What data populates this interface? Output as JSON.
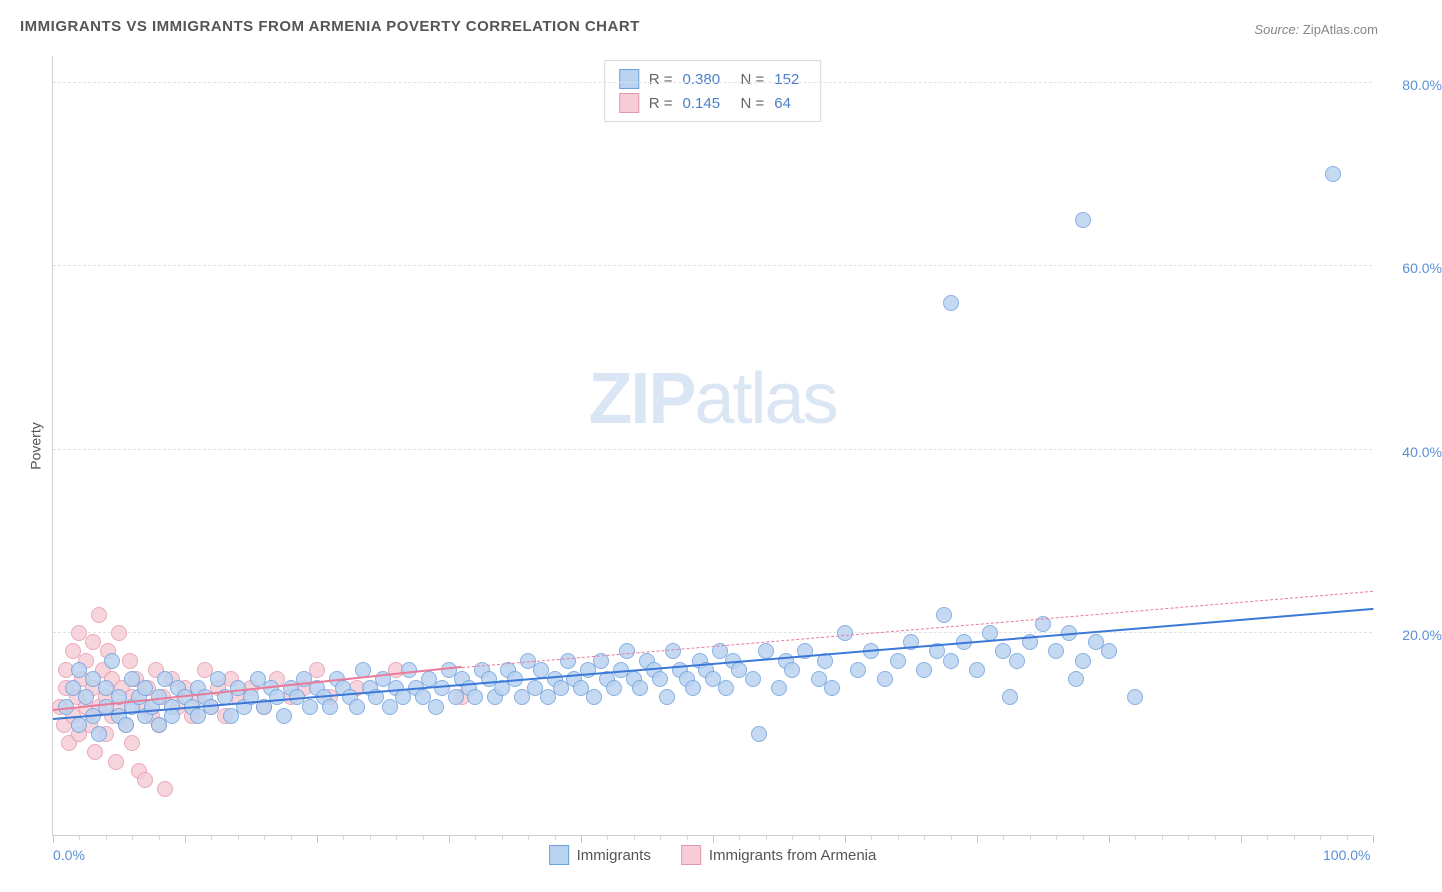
{
  "title": "IMMIGRANTS VS IMMIGRANTS FROM ARMENIA POVERTY CORRELATION CHART",
  "source_label": "Source:",
  "source_value": "ZipAtlas.com",
  "ylabel": "Poverty",
  "watermark_bold": "ZIP",
  "watermark_rest": "atlas",
  "chart": {
    "type": "scatter",
    "xlim": [
      0,
      100
    ],
    "ylim": [
      0,
      85
    ],
    "x_axis_labels": [
      {
        "v": 0,
        "t": "0.0%"
      },
      {
        "v": 100,
        "t": "100.0%"
      }
    ],
    "y_axis_labels": [
      {
        "v": 20,
        "t": "20.0%"
      },
      {
        "v": 40,
        "t": "40.0%"
      },
      {
        "v": 60,
        "t": "60.0%"
      },
      {
        "v": 80,
        "t": "80.0%"
      }
    ],
    "y_gridlines": [
      22,
      42,
      62,
      82
    ],
    "x_major_ticks": [
      0,
      10,
      20,
      30,
      40,
      50,
      60,
      70,
      80,
      90,
      100
    ],
    "x_minor_step": 2,
    "background_color": "#ffffff",
    "grid_color": "#e2e2e2",
    "axis_label_color": "#5b8fd6",
    "marker_radius": 8,
    "marker_stroke_width": 1.2,
    "series": [
      {
        "name": "Immigrants",
        "fill": "#b9d3f0",
        "stroke": "#6ea0dd",
        "R": "0.380",
        "N": "152",
        "trend": {
          "x1": 0,
          "y1": 12.5,
          "x2": 100,
          "y2": 24.5,
          "color": "#3b78d8",
          "style": "solid",
          "extend_x2": 100,
          "extend_y2": 24.5,
          "extend_style": "solid"
        },
        "points": [
          [
            1,
            14
          ],
          [
            1.5,
            16
          ],
          [
            2,
            12
          ],
          [
            2,
            18
          ],
          [
            2.5,
            15
          ],
          [
            3,
            13
          ],
          [
            3,
            17
          ],
          [
            3.5,
            11
          ],
          [
            4,
            14
          ],
          [
            4,
            16
          ],
          [
            4.5,
            19
          ],
          [
            5,
            13
          ],
          [
            5,
            15
          ],
          [
            5.5,
            12
          ],
          [
            6,
            14
          ],
          [
            6,
            17
          ],
          [
            6.5,
            15
          ],
          [
            7,
            13
          ],
          [
            7,
            16
          ],
          [
            7.5,
            14
          ],
          [
            8,
            12
          ],
          [
            8,
            15
          ],
          [
            8.5,
            17
          ],
          [
            9,
            14
          ],
          [
            9,
            13
          ],
          [
            9.5,
            16
          ],
          [
            10,
            15
          ],
          [
            10.5,
            14
          ],
          [
            11,
            13
          ],
          [
            11,
            16
          ],
          [
            11.5,
            15
          ],
          [
            12,
            14
          ],
          [
            12.5,
            17
          ],
          [
            13,
            15
          ],
          [
            13.5,
            13
          ],
          [
            14,
            16
          ],
          [
            14.5,
            14
          ],
          [
            15,
            15
          ],
          [
            15.5,
            17
          ],
          [
            16,
            14
          ],
          [
            16.5,
            16
          ],
          [
            17,
            15
          ],
          [
            17.5,
            13
          ],
          [
            18,
            16
          ],
          [
            18.5,
            15
          ],
          [
            19,
            17
          ],
          [
            19.5,
            14
          ],
          [
            20,
            16
          ],
          [
            20.5,
            15
          ],
          [
            21,
            14
          ],
          [
            21.5,
            17
          ],
          [
            22,
            16
          ],
          [
            22.5,
            15
          ],
          [
            23,
            14
          ],
          [
            23.5,
            18
          ],
          [
            24,
            16
          ],
          [
            24.5,
            15
          ],
          [
            25,
            17
          ],
          [
            25.5,
            14
          ],
          [
            26,
            16
          ],
          [
            26.5,
            15
          ],
          [
            27,
            18
          ],
          [
            27.5,
            16
          ],
          [
            28,
            15
          ],
          [
            28.5,
            17
          ],
          [
            29,
            14
          ],
          [
            29.5,
            16
          ],
          [
            30,
            18
          ],
          [
            30.5,
            15
          ],
          [
            31,
            17
          ],
          [
            31.5,
            16
          ],
          [
            32,
            15
          ],
          [
            32.5,
            18
          ],
          [
            33,
            17
          ],
          [
            33.5,
            15
          ],
          [
            34,
            16
          ],
          [
            34.5,
            18
          ],
          [
            35,
            17
          ],
          [
            35.5,
            15
          ],
          [
            36,
            19
          ],
          [
            36.5,
            16
          ],
          [
            37,
            18
          ],
          [
            37.5,
            15
          ],
          [
            38,
            17
          ],
          [
            38.5,
            16
          ],
          [
            39,
            19
          ],
          [
            39.5,
            17
          ],
          [
            40,
            16
          ],
          [
            40.5,
            18
          ],
          [
            41,
            15
          ],
          [
            41.5,
            19
          ],
          [
            42,
            17
          ],
          [
            42.5,
            16
          ],
          [
            43,
            18
          ],
          [
            43.5,
            20
          ],
          [
            44,
            17
          ],
          [
            44.5,
            16
          ],
          [
            45,
            19
          ],
          [
            45.5,
            18
          ],
          [
            46,
            17
          ],
          [
            46.5,
            15
          ],
          [
            47,
            20
          ],
          [
            47.5,
            18
          ],
          [
            48,
            17
          ],
          [
            48.5,
            16
          ],
          [
            49,
            19
          ],
          [
            49.5,
            18
          ],
          [
            50,
            17
          ],
          [
            50.5,
            20
          ],
          [
            51,
            16
          ],
          [
            51.5,
            19
          ],
          [
            52,
            18
          ],
          [
            53,
            17
          ],
          [
            53.5,
            11
          ],
          [
            54,
            20
          ],
          [
            55,
            16
          ],
          [
            55.5,
            19
          ],
          [
            56,
            18
          ],
          [
            57,
            20
          ],
          [
            58,
            17
          ],
          [
            58.5,
            19
          ],
          [
            59,
            16
          ],
          [
            60,
            22
          ],
          [
            61,
            18
          ],
          [
            62,
            20
          ],
          [
            63,
            17
          ],
          [
            64,
            19
          ],
          [
            65,
            21
          ],
          [
            66,
            18
          ],
          [
            67,
            20
          ],
          [
            67.5,
            24
          ],
          [
            68,
            19
          ],
          [
            69,
            21
          ],
          [
            70,
            18
          ],
          [
            71,
            22
          ],
          [
            72,
            20
          ],
          [
            72.5,
            15
          ],
          [
            73,
            19
          ],
          [
            74,
            21
          ],
          [
            75,
            23
          ],
          [
            76,
            20
          ],
          [
            77,
            22
          ],
          [
            77.5,
            17
          ],
          [
            78,
            19
          ],
          [
            79,
            21
          ],
          [
            80,
            20
          ],
          [
            82,
            15
          ],
          [
            68,
            58
          ],
          [
            78,
            67
          ],
          [
            97,
            72
          ]
        ]
      },
      {
        "name": "Immigrants from Armenia",
        "fill": "#f6cdd6",
        "stroke": "#e597ab",
        "R": "0.145",
        "N": "64",
        "trend": {
          "x1": 0,
          "y1": 13.5,
          "x2": 31,
          "y2": 18.2,
          "color": "#e87b9a",
          "style": "solid",
          "extend_x2": 100,
          "extend_y2": 26.5,
          "extend_style": "dashed"
        },
        "points": [
          [
            0.5,
            14
          ],
          [
            0.8,
            12
          ],
          [
            1,
            16
          ],
          [
            1,
            18
          ],
          [
            1.2,
            10
          ],
          [
            1.5,
            20
          ],
          [
            1.5,
            13
          ],
          [
            1.8,
            15
          ],
          [
            2,
            22
          ],
          [
            2,
            11
          ],
          [
            2.2,
            17
          ],
          [
            2.5,
            14
          ],
          [
            2.5,
            19
          ],
          [
            2.8,
            12
          ],
          [
            3,
            16
          ],
          [
            3,
            21
          ],
          [
            3.2,
            9
          ],
          [
            3.5,
            24
          ],
          [
            3.5,
            14
          ],
          [
            3.8,
            18
          ],
          [
            4,
            11
          ],
          [
            4,
            15
          ],
          [
            4.2,
            20
          ],
          [
            4.5,
            13
          ],
          [
            4.5,
            17
          ],
          [
            4.8,
            8
          ],
          [
            5,
            22
          ],
          [
            5,
            14
          ],
          [
            5.2,
            16
          ],
          [
            5.5,
            12
          ],
          [
            5.8,
            19
          ],
          [
            6,
            15
          ],
          [
            6,
            10
          ],
          [
            6.3,
            17
          ],
          [
            6.5,
            7
          ],
          [
            6.8,
            14
          ],
          [
            7,
            6
          ],
          [
            7.2,
            16
          ],
          [
            7.5,
            13
          ],
          [
            7.8,
            18
          ],
          [
            8,
            12
          ],
          [
            8.3,
            15
          ],
          [
            8.5,
            5
          ],
          [
            9,
            17
          ],
          [
            9.5,
            14
          ],
          [
            10,
            16
          ],
          [
            10.5,
            13
          ],
          [
            11,
            15
          ],
          [
            11.5,
            18
          ],
          [
            12,
            14
          ],
          [
            12.5,
            16
          ],
          [
            13,
            13
          ],
          [
            13.5,
            17
          ],
          [
            14,
            15
          ],
          [
            15,
            16
          ],
          [
            16,
            14
          ],
          [
            17,
            17
          ],
          [
            18,
            15
          ],
          [
            19,
            16
          ],
          [
            20,
            18
          ],
          [
            21,
            15
          ],
          [
            23,
            16
          ],
          [
            26,
            18
          ],
          [
            31,
            15
          ]
        ]
      }
    ],
    "legend_bottom": [
      {
        "label": "Immigrants",
        "fill": "#b9d3f0",
        "stroke": "#6ea0dd"
      },
      {
        "label": "Immigrants from Armenia",
        "fill": "#f6cdd6",
        "stroke": "#e597ab"
      }
    ]
  }
}
